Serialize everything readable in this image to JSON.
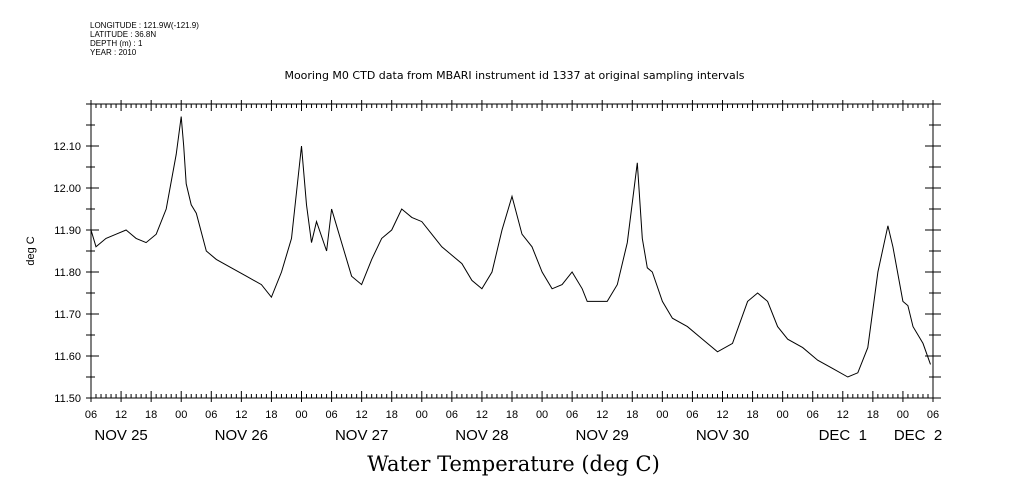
{
  "header": {
    "lines": [
      "LONGITUDE : 121.9W(-121.9)",
      "LATITUDE : 36.8N",
      "DEPTH (m) : 1",
      "YEAR : 2010"
    ],
    "title": "Mooring M0 CTD data from MBARI instrument id 1337 at original sampling intervals"
  },
  "chart_data": {
    "type": "line",
    "title": "Mooring M0 CTD data from MBARI instrument id 1337 at original sampling intervals",
    "xlabel": "Water Temperature (deg C)",
    "ylabel": "deg C",
    "ylim": [
      11.5,
      12.2
    ],
    "yticks": [
      "11.50",
      "11.60",
      "11.70",
      "11.80",
      "11.90",
      "12.00",
      "12.10"
    ],
    "xrange_hours": [
      "2010-11-25T06:00",
      "2010-12-02T06:00"
    ],
    "xtick_hour_labels": [
      "06",
      "12",
      "18",
      "00",
      "06",
      "12",
      "18",
      "00",
      "06",
      "12",
      "18",
      "00",
      "06",
      "12",
      "18",
      "00",
      "06",
      "12",
      "18",
      "00",
      "06",
      "12",
      "18",
      "00",
      "06",
      "12",
      "18",
      "00",
      "06"
    ],
    "xtick_day_labels": [
      "NOV 25",
      "NOV 26",
      "NOV 27",
      "NOV 28",
      "NOV 29",
      "NOV 30",
      "DEC  1",
      "DEC  2"
    ],
    "grid": false,
    "legend": "none",
    "series": [
      {
        "x": [
          "2010-11-25T05:00",
          "2010-11-25T07:00",
          "2010-11-25T09:00",
          "2010-11-25T11:00",
          "2010-11-25T13:00",
          "2010-11-25T15:00",
          "2010-11-25T17:00",
          "2010-11-25T19:00",
          "2010-11-25T21:00",
          "2010-11-25T23:00",
          "2010-11-26T00:00",
          "2010-11-26T00:30",
          "2010-11-26T01:00",
          "2010-11-26T02:00",
          "2010-11-26T03:00",
          "2010-11-26T05:00",
          "2010-11-26T07:00",
          "2010-11-26T10:00",
          "2010-11-26T13:00",
          "2010-11-26T16:00",
          "2010-11-26T18:00",
          "2010-11-26T20:00",
          "2010-11-26T22:00",
          "2010-11-27T00:00",
          "2010-11-27T01:00",
          "2010-11-27T02:00",
          "2010-11-27T03:00",
          "2010-11-27T05:00",
          "2010-11-27T06:00",
          "2010-11-27T07:00",
          "2010-11-27T08:00",
          "2010-11-27T10:00",
          "2010-11-27T12:00",
          "2010-11-27T14:00",
          "2010-11-27T16:00",
          "2010-11-27T18:00",
          "2010-11-27T20:00",
          "2010-11-27T22:00",
          "2010-11-28T00:00",
          "2010-11-28T02:00",
          "2010-11-28T04:00",
          "2010-11-28T06:00",
          "2010-11-28T08:00",
          "2010-11-28T10:00",
          "2010-11-28T12:00",
          "2010-11-28T14:00",
          "2010-11-28T16:00",
          "2010-11-28T18:00",
          "2010-11-28T20:00",
          "2010-11-28T22:00",
          "2010-11-29T00:00",
          "2010-11-29T02:00",
          "2010-11-29T04:00",
          "2010-11-29T06:00",
          "2010-11-29T08:00",
          "2010-11-29T09:00",
          "2010-11-29T11:00",
          "2010-11-29T13:00",
          "2010-11-29T15:00",
          "2010-11-29T17:00",
          "2010-11-29T19:00",
          "2010-11-29T20:00",
          "2010-11-29T21:00",
          "2010-11-29T22:00",
          "2010-11-30T00:00",
          "2010-11-30T02:00",
          "2010-11-30T05:00",
          "2010-11-30T08:00",
          "2010-11-30T11:00",
          "2010-11-30T14:00",
          "2010-11-30T17:00",
          "2010-11-30T19:00",
          "2010-11-30T21:00",
          "2010-11-30T23:00",
          "2010-12-01T01:00",
          "2010-12-01T04:00",
          "2010-12-01T07:00",
          "2010-12-01T10:00",
          "2010-12-01T13:00",
          "2010-12-01T15:00",
          "2010-12-01T17:00",
          "2010-12-01T19:00",
          "2010-12-01T21:00",
          "2010-12-01T22:00",
          "2010-12-02T00:00",
          "2010-12-02T01:00",
          "2010-12-02T02:00",
          "2010-12-02T04:00",
          "2010-12-02T05:30"
        ],
        "values": [
          11.9,
          11.86,
          11.88,
          11.89,
          11.9,
          11.88,
          11.87,
          11.89,
          11.95,
          12.08,
          12.17,
          12.1,
          12.01,
          11.96,
          11.94,
          11.85,
          11.83,
          11.81,
          11.79,
          11.77,
          11.74,
          11.8,
          11.88,
          12.1,
          11.96,
          11.87,
          11.92,
          11.85,
          11.95,
          11.91,
          11.87,
          11.79,
          11.77,
          11.83,
          11.88,
          11.9,
          11.95,
          11.93,
          11.92,
          11.89,
          11.86,
          11.84,
          11.82,
          11.78,
          11.76,
          11.8,
          11.9,
          11.98,
          11.89,
          11.86,
          11.8,
          11.76,
          11.77,
          11.8,
          11.76,
          11.73,
          11.73,
          11.73,
          11.77,
          11.87,
          12.06,
          11.88,
          11.81,
          11.8,
          11.73,
          11.69,
          11.67,
          11.64,
          11.61,
          11.63,
          11.73,
          11.75,
          11.73,
          11.67,
          11.64,
          11.62,
          11.59,
          11.57,
          11.55,
          11.56,
          11.62,
          11.8,
          11.91,
          11.86,
          11.73,
          11.72,
          11.67,
          11.63,
          11.58
        ]
      }
    ]
  }
}
